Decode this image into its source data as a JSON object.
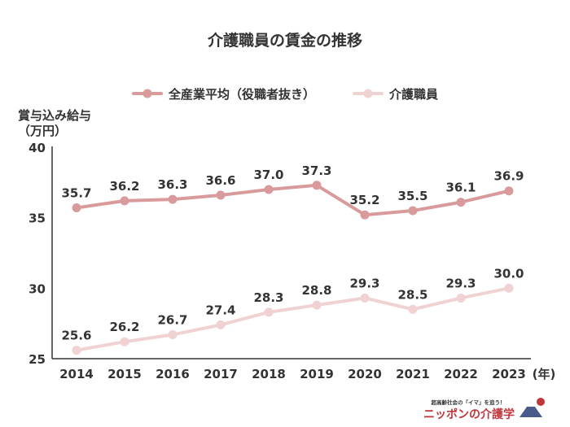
{
  "chart_data": {
    "type": "line",
    "title": "介護職員の賃金の推移",
    "ylabel_lines": [
      "賞与込み給与",
      "（万円）"
    ],
    "x_unit": "(年)",
    "categories": [
      "2014",
      "2015",
      "2016",
      "2017",
      "2018",
      "2019",
      "2020",
      "2021",
      "2022",
      "2023"
    ],
    "ylim": [
      25,
      40
    ],
    "yticks": [
      "25",
      "30",
      "35",
      "40"
    ],
    "grid": false,
    "legend_position": "top",
    "series": [
      {
        "name": "全産業平均（役職者抜き）",
        "color": "#d99a9c",
        "values": [
          35.7,
          36.2,
          36.3,
          36.6,
          37.0,
          37.3,
          35.2,
          35.5,
          36.1,
          36.9
        ],
        "labels": [
          "35.7",
          "36.2",
          "36.3",
          "36.6",
          "37.0",
          "37.3",
          "35.2",
          "35.5",
          "36.1",
          "36.9"
        ]
      },
      {
        "name": "介護職員",
        "color": "#f0d2d3",
        "values": [
          25.6,
          26.2,
          26.7,
          27.4,
          28.3,
          28.8,
          29.3,
          28.5,
          29.3,
          30.0
        ],
        "labels": [
          "25.6",
          "26.2",
          "26.7",
          "27.4",
          "28.3",
          "28.8",
          "29.3",
          "28.5",
          "29.3",
          "30.0"
        ]
      }
    ]
  },
  "logo": {
    "tagline": "超高齢社会の「イマ」を追う！",
    "name": "ニッポンの介護学"
  }
}
